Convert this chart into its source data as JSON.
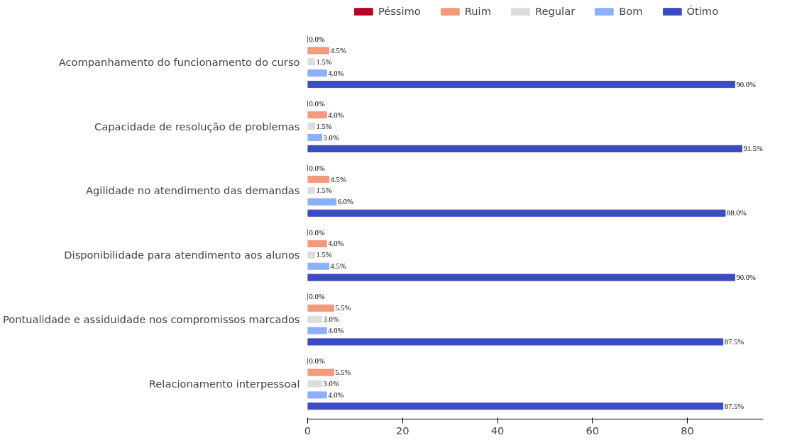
{
  "chart_data": {
    "type": "bar",
    "orientation": "horizontal",
    "categories": [
      "Acompanhamento do funcionamento do curso",
      "Capacidade de resolução de problemas",
      "Agilidade no atendimento das demandas",
      "Disponibilidade para atendimento aos alunos",
      "Pontualidade e assiduidade nos compromissos marcados",
      "Relacionamento interpessoal"
    ],
    "series": [
      {
        "name": "Péssimo",
        "color": "#b40426",
        "values": [
          0,
          0,
          0,
          0,
          0,
          0
        ],
        "value_labels": [
          "0.0%",
          "0.0%",
          "0.0%",
          "0.0%",
          "0.0%",
          "0.0%"
        ]
      },
      {
        "name": "Ruim",
        "color": "#f49a7b",
        "values": [
          4.5,
          4.0,
          4.5,
          4.0,
          5.5,
          5.5
        ],
        "value_labels": [
          "4.5%",
          "4.0%",
          "4.5%",
          "4.0%",
          "5.5%",
          "5.5%"
        ]
      },
      {
        "name": "Regular",
        "color": "#dddddd",
        "values": [
          1.5,
          1.5,
          1.5,
          1.5,
          3.0,
          3.0
        ],
        "value_labels": [
          "1.5%",
          "1.5%",
          "1.5%",
          "1.5%",
          "3.0%",
          "3.0%"
        ]
      },
      {
        "name": "Bom",
        "color": "#8db0fe",
        "values": [
          4.0,
          3.0,
          6.0,
          4.5,
          4.0,
          4.0
        ],
        "value_labels": [
          "4.0%",
          "3.0%",
          "6.0%",
          "4.5%",
          "4.0%",
          "4.0%"
        ]
      },
      {
        "name": "Ótimo",
        "color": "#3b4cc0",
        "values": [
          90.0,
          91.5,
          88.0,
          90.0,
          87.5,
          87.5
        ],
        "value_labels": [
          "90.0%",
          "91.5%",
          "88.0%",
          "90.0%",
          "87.5%",
          "87.5%"
        ]
      }
    ],
    "xlim": [
      0,
      96
    ],
    "xticks": [
      0,
      20,
      40,
      60,
      80
    ],
    "legend": "top",
    "grid": false
  }
}
